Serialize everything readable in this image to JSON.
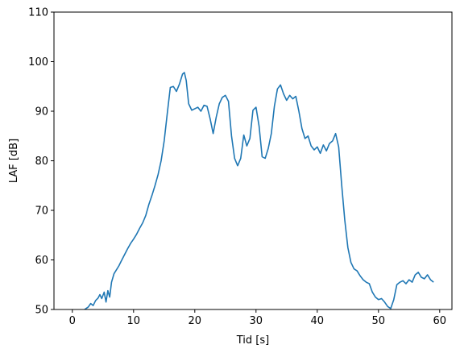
{
  "chart_data": {
    "type": "line",
    "xlabel": "Tid [s]",
    "ylabel": "LAF [dB]",
    "xlim": [
      -3.0,
      62.0
    ],
    "ylim": [
      50,
      110
    ],
    "xticks": [
      0,
      10,
      20,
      30,
      40,
      50,
      60
    ],
    "yticks": [
      50,
      60,
      70,
      80,
      90,
      100,
      110
    ],
    "grid": false,
    "series": [
      {
        "color": "#1f77b4",
        "x": [
          2.0,
          2.6,
          3.0,
          3.4,
          3.8,
          4.2,
          4.5,
          4.8,
          5.2,
          5.5,
          5.8,
          6.1,
          6.4,
          6.8,
          7.2,
          7.6,
          8.0,
          8.5,
          9.0,
          9.5,
          10.0,
          10.5,
          11.0,
          11.5,
          12.0,
          12.5,
          13.0,
          13.5,
          14.0,
          14.5,
          15.0,
          15.5,
          16.0,
          16.5,
          17.0,
          17.5,
          18.0,
          18.3,
          18.6,
          19.0,
          19.5,
          20.0,
          20.5,
          21.0,
          21.5,
          22.0,
          22.5,
          23.0,
          23.5,
          24.0,
          24.5,
          25.0,
          25.5,
          26.0,
          26.5,
          27.0,
          27.5,
          28.0,
          28.5,
          29.0,
          29.5,
          30.0,
          30.5,
          31.0,
          31.5,
          32.0,
          32.5,
          33.0,
          33.5,
          34.0,
          34.5,
          35.0,
          35.5,
          36.0,
          36.5,
          37.0,
          37.5,
          38.0,
          38.5,
          39.0,
          39.5,
          40.0,
          40.5,
          41.0,
          41.5,
          42.0,
          42.5,
          43.0,
          43.5,
          44.0,
          44.5,
          45.0,
          45.5,
          46.0,
          46.5,
          47.0,
          47.5,
          48.0,
          48.5,
          49.0,
          49.5,
          50.0,
          50.5,
          51.0,
          51.5,
          52.0,
          52.5,
          53.0,
          53.5,
          54.0,
          54.5,
          55.0,
          55.5,
          56.0,
          56.5,
          57.0,
          57.5,
          58.0,
          58.5,
          59.0
        ],
        "y": [
          50.0,
          50.5,
          51.2,
          50.8,
          51.8,
          52.3,
          53.0,
          52.2,
          53.5,
          51.5,
          53.8,
          52.5,
          55.5,
          57.2,
          58.0,
          58.8,
          59.8,
          61.0,
          62.2,
          63.3,
          64.2,
          65.2,
          66.4,
          67.5,
          69.0,
          71.2,
          73.0,
          75.0,
          77.2,
          80.0,
          84.0,
          89.5,
          94.8,
          95.0,
          94.0,
          95.5,
          97.5,
          97.8,
          96.2,
          91.5,
          90.2,
          90.5,
          90.8,
          90.0,
          91.2,
          91.0,
          88.5,
          85.5,
          88.8,
          91.5,
          92.8,
          93.2,
          92.0,
          85.0,
          80.5,
          79.0,
          80.5,
          85.2,
          83.0,
          84.5,
          90.2,
          90.8,
          87.0,
          80.8,
          80.5,
          82.5,
          85.5,
          91.0,
          94.5,
          95.3,
          93.5,
          92.2,
          93.2,
          92.5,
          93.0,
          90.0,
          86.5,
          84.5,
          85.0,
          83.0,
          82.2,
          82.8,
          81.5,
          83.2,
          82.0,
          83.5,
          84.0,
          85.5,
          82.8,
          75.0,
          68.0,
          62.5,
          59.5,
          58.2,
          57.8,
          56.8,
          56.0,
          55.5,
          55.2,
          53.5,
          52.5,
          52.0,
          52.2,
          51.5,
          50.6,
          50.2,
          52.0,
          55.0,
          55.5,
          55.8,
          55.2,
          56.0,
          55.5,
          57.0,
          57.5,
          56.5,
          56.2,
          57.0,
          56.0,
          55.5
        ]
      }
    ]
  }
}
